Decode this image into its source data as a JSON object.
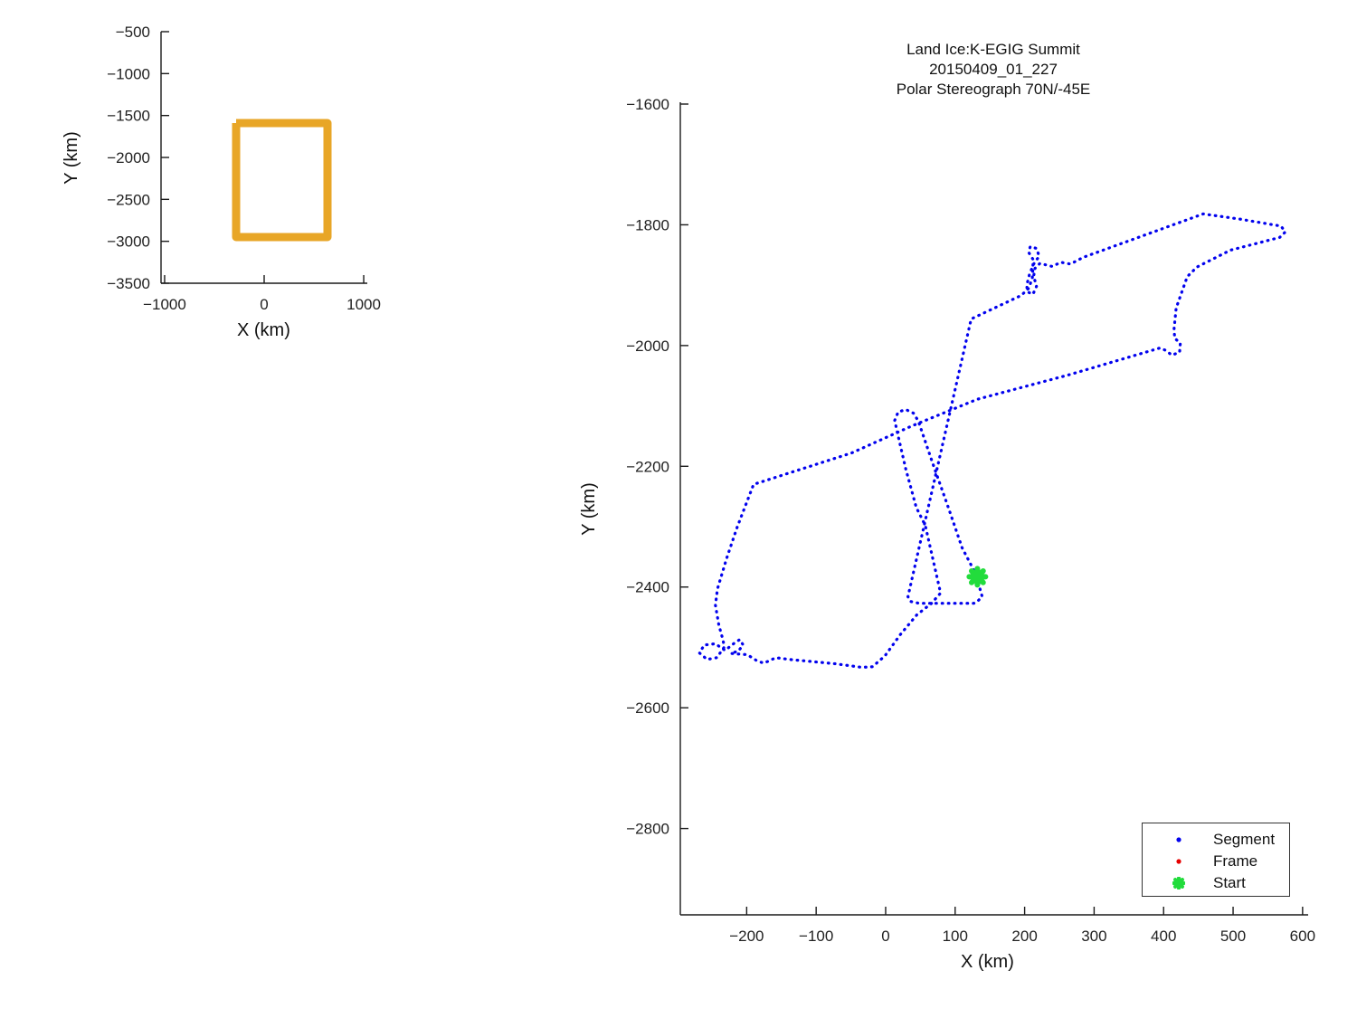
{
  "main_plot": {
    "title_lines": [
      "Land Ice:K-EGIG Summit",
      "20150409_01_227",
      "Polar Stereograph 70N/-45E"
    ],
    "xlabel": "X (km)",
    "ylabel": "Y (km)",
    "legend": [
      {
        "label": "Segment",
        "marker": "dot",
        "color": "#0202EE"
      },
      {
        "label": "Frame",
        "marker": "dot",
        "color": "#E60000"
      },
      {
        "label": "Start",
        "marker": "asterisk",
        "color": "#22DC3C"
      }
    ]
  },
  "overview_plot": {
    "xlabel": "X (km)",
    "ylabel": "Y (km)"
  },
  "colors": {
    "track_blue": "#0202EE",
    "frame_red": "#E60000",
    "start_green": "#22DC3C",
    "box_orange": "#E8A627",
    "axis": "#1a1a1a",
    "tick_text": "#222222"
  },
  "chart_data": [
    {
      "name": "overview",
      "type": "line",
      "xlabel": "X (km)",
      "ylabel": "Y (km)",
      "xlim": [
        -1036,
        1036
      ],
      "ylim": [
        -3500,
        -500
      ],
      "x_ticks": [
        -1000,
        0,
        1000
      ],
      "y_ticks": [
        -500,
        -1000,
        -1500,
        -2000,
        -2500,
        -3000,
        -3500
      ],
      "grid": false,
      "series": [
        {
          "name": "survey-box",
          "color": "#E8A627",
          "line_width": 9,
          "points": [
            [
              -282,
              -1590
            ],
            [
              636,
              -1590
            ],
            [
              636,
              -2950
            ],
            [
              -282,
              -2950
            ],
            [
              -282,
              -1590
            ]
          ]
        }
      ]
    },
    {
      "name": "flight-track",
      "type": "line",
      "title": "Land Ice:K-EGIG Summit 20150409_01_227 Polar Stereograph 70N/-45E",
      "xlabel": "X (km)",
      "ylabel": "Y (km)",
      "xlim": [
        -295.5,
        608
      ],
      "ylim": [
        -2943,
        -1597
      ],
      "x_ticks": [
        -200,
        -100,
        0,
        100,
        200,
        300,
        400,
        500,
        600
      ],
      "y_ticks": [
        -1600,
        -1800,
        -2000,
        -2200,
        -2400,
        -2600,
        -2800
      ],
      "grid": false,
      "legend_position": "lower right",
      "start_point": [
        132,
        -2383
      ],
      "series": [
        {
          "name": "Segment",
          "color": "#0202EE",
          "style": "dotted",
          "line_width": 3.2,
          "points": [
            [
              132,
              -2383
            ],
            [
              136,
              -2404
            ],
            [
              139,
              -2416
            ],
            [
              131,
              -2425
            ],
            [
              127,
              -2427
            ],
            [
              48,
              -2427
            ],
            [
              36,
              -2424
            ],
            [
              32,
              -2416
            ],
            [
              123,
              -1956
            ],
            [
              195,
              -1917
            ],
            [
              206,
              -1905
            ],
            [
              211,
              -1888
            ],
            [
              212,
              -1870
            ],
            [
              212,
              -1857
            ],
            [
              206,
              -1846
            ],
            [
              208,
              -1836
            ],
            [
              217,
              -1839
            ],
            [
              221,
              -1852
            ],
            [
              213,
              -1865
            ],
            [
              207,
              -1882
            ],
            [
              203,
              -1900
            ],
            [
              204,
              -1911
            ],
            [
              212,
              -1915
            ],
            [
              217,
              -1902
            ],
            [
              213,
              -1885
            ],
            [
              215,
              -1872
            ],
            [
              222,
              -1864
            ],
            [
              240,
              -1869
            ],
            [
              252,
              -1862
            ],
            [
              266,
              -1865
            ],
            [
              284,
              -1854
            ],
            [
              457,
              -1782
            ],
            [
              512,
              -1791
            ],
            [
              553,
              -1799
            ],
            [
              569,
              -1802
            ],
            [
              575,
              -1812
            ],
            [
              567,
              -1821
            ],
            [
              496,
              -1842
            ],
            [
              448,
              -1870
            ],
            [
              434,
              -1886
            ],
            [
              418,
              -1938
            ],
            [
              415,
              -1972
            ],
            [
              416,
              -1988
            ],
            [
              424,
              -1996
            ],
            [
              423,
              -2011
            ],
            [
              412,
              -2016
            ],
            [
              403,
              -2008
            ],
            [
              395,
              -2004
            ],
            [
              262,
              -2049
            ],
            [
              132,
              -2089
            ],
            [
              38,
              -2133
            ],
            [
              -49,
              -2178
            ],
            [
              -190,
              -2230
            ],
            [
              -214,
              -2302
            ],
            [
              -229,
              -2353
            ],
            [
              -242,
              -2403
            ],
            [
              -245,
              -2430
            ],
            [
              -240,
              -2463
            ],
            [
              -235,
              -2484
            ],
            [
              -232,
              -2499
            ],
            [
              -243,
              -2517
            ],
            [
              -257,
              -2520
            ],
            [
              -268,
              -2509
            ],
            [
              -261,
              -2496
            ],
            [
              -245,
              -2494
            ],
            [
              -231,
              -2505
            ],
            [
              -219,
              -2494
            ],
            [
              -210,
              -2487
            ],
            [
              -205,
              -2496
            ],
            [
              -212,
              -2506
            ],
            [
              -223,
              -2510
            ],
            [
              -199,
              -2512
            ],
            [
              -184,
              -2523
            ],
            [
              -175,
              -2526
            ],
            [
              -158,
              -2517
            ],
            [
              -138,
              -2520
            ],
            [
              -110,
              -2523
            ],
            [
              -73,
              -2527
            ],
            [
              -34,
              -2533
            ],
            [
              -19,
              -2532
            ],
            [
              -1,
              -2514
            ],
            [
              21,
              -2479
            ],
            [
              45,
              -2446
            ],
            [
              66,
              -2427
            ],
            [
              79,
              -2410
            ],
            [
              57,
              -2298
            ],
            [
              44,
              -2268
            ],
            [
              29,
              -2205
            ],
            [
              16,
              -2140
            ],
            [
              13,
              -2124
            ],
            [
              18,
              -2110
            ],
            [
              29,
              -2106
            ],
            [
              40,
              -2112
            ],
            [
              47,
              -2125
            ],
            [
              68,
              -2196
            ],
            [
              91,
              -2271
            ],
            [
              110,
              -2335
            ],
            [
              125,
              -2368
            ],
            [
              132,
              -2383
            ]
          ]
        },
        {
          "name": "Start",
          "color": "#22DC3C",
          "marker": "asterisk",
          "points": [
            [
              132,
              -2383
            ]
          ]
        }
      ]
    }
  ]
}
